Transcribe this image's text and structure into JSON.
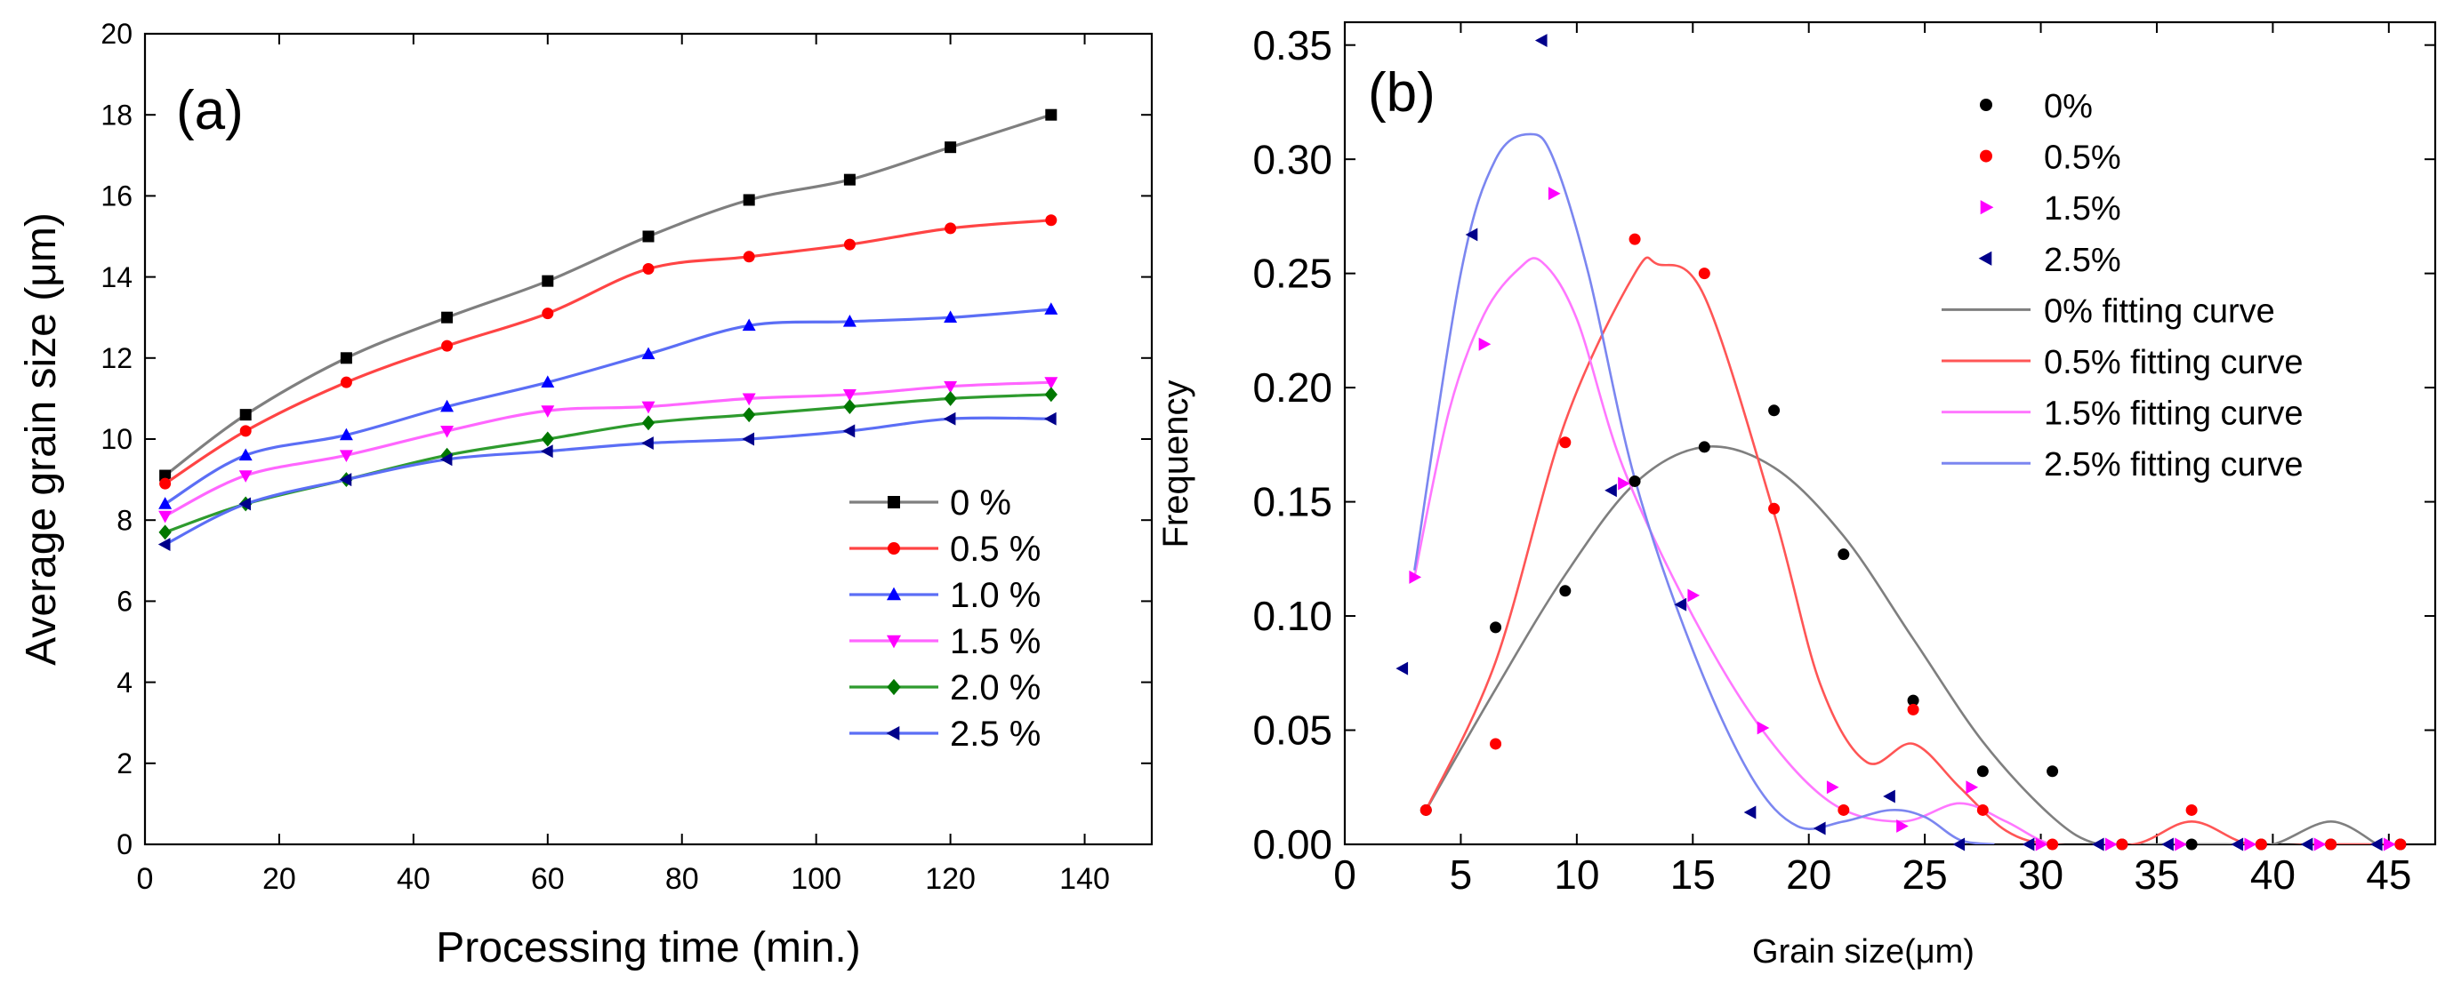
{
  "chart_data": [
    {
      "type": "line",
      "panel_label": "(a)",
      "xlabel": "Processing time (min.)",
      "ylabel": "Average grain size (μm)",
      "xlim": [
        0,
        150
      ],
      "ylim": [
        0,
        20
      ],
      "x_ticks": [
        "0",
        "20",
        "40",
        "60",
        "80",
        "100",
        "120",
        "140"
      ],
      "y_ticks": [
        "0",
        "2",
        "4",
        "6",
        "8",
        "10",
        "12",
        "14",
        "16",
        "18",
        "20"
      ],
      "legend_position": "bottom-right",
      "x": [
        3,
        15,
        30,
        45,
        60,
        75,
        90,
        105,
        120,
        135
      ],
      "series": [
        {
          "name": "0    %",
          "color": "#7f7f7f",
          "marker_color": "#000000",
          "marker": "square",
          "values": [
            9.1,
            10.6,
            12.0,
            13.0,
            13.9,
            15.0,
            15.9,
            16.4,
            17.2,
            18.0
          ]
        },
        {
          "name": "0.5 %",
          "color": "#ff4444",
          "marker_color": "#ff0000",
          "marker": "circle",
          "values": [
            8.9,
            10.2,
            11.4,
            12.3,
            13.1,
            14.2,
            14.5,
            14.8,
            15.2,
            15.4
          ]
        },
        {
          "name": "1.0 %",
          "color": "#5b6ef5",
          "marker_color": "#0000ff",
          "marker": "triangle-up",
          "values": [
            8.4,
            9.6,
            10.1,
            10.8,
            11.4,
            12.1,
            12.8,
            12.9,
            13.0,
            13.2
          ]
        },
        {
          "name": "1.5 %",
          "color": "#ff66ff",
          "marker_color": "#ff00ff",
          "marker": "triangle-down",
          "values": [
            8.1,
            9.1,
            9.6,
            10.2,
            10.7,
            10.8,
            11.0,
            11.1,
            11.3,
            11.4
          ]
        },
        {
          "name": "2.0 %",
          "color": "#2e9b2e",
          "marker_color": "#007700",
          "marker": "diamond",
          "values": [
            7.7,
            8.4,
            9.0,
            9.6,
            10.0,
            10.4,
            10.6,
            10.8,
            11.0,
            11.1
          ]
        },
        {
          "name": "2.5 %",
          "color": "#5b6ef5",
          "marker_color": "#00008b",
          "marker": "triangle-left",
          "values": [
            7.4,
            8.4,
            9.0,
            9.5,
            9.7,
            9.9,
            10.0,
            10.2,
            10.5,
            10.5
          ]
        }
      ]
    },
    {
      "type": "scatter",
      "panel_label": "(b)",
      "xlabel": "Grain size(μm)",
      "ylabel": "Frequency",
      "xlim": [
        0,
        47
      ],
      "ylim": [
        0,
        0.36
      ],
      "x_ticks": [
        "0",
        "5",
        "10",
        "15",
        "20",
        "25",
        "30",
        "35",
        "40",
        "45"
      ],
      "y_ticks": [
        "0.00",
        "0.05",
        "0.10",
        "0.15",
        "0.20",
        "0.25",
        "0.30",
        "0.35"
      ],
      "legend_position": "top-right",
      "series": [
        {
          "name": "0%",
          "color": "#000000",
          "marker": "circle",
          "x": [
            3.5,
            6.5,
            9.5,
            12.5,
            15.5,
            18.5,
            21.5,
            24.5,
            27.5,
            30.5,
            33.5,
            36.5,
            39.5,
            42.5,
            45.5
          ],
          "y": [
            0.015,
            0.095,
            0.111,
            0.159,
            0.174,
            0.19,
            0.127,
            0.063,
            0.032,
            0.032,
            0.0,
            0.0,
            0.0,
            0.0,
            0.0
          ]
        },
        {
          "name": "0.5%",
          "color": "#ff0000",
          "marker": "circle",
          "x": [
            3.5,
            6.5,
            9.5,
            12.5,
            15.5,
            18.5,
            21.5,
            24.5,
            27.5,
            30.5,
            33.5,
            36.5,
            39.5,
            42.5,
            45.5
          ],
          "y": [
            0.015,
            0.044,
            0.176,
            0.265,
            0.25,
            0.147,
            0.015,
            0.059,
            0.015,
            0.0,
            0.0,
            0.015,
            0.0,
            0.0,
            0.0
          ]
        },
        {
          "name": "1.5%",
          "color": "#ff00ff",
          "marker": "triangle-right",
          "x": [
            3.0,
            6.0,
            9.0,
            12.0,
            15.0,
            18.0,
            21.0,
            24.0,
            27.0,
            30.0,
            33.0,
            36.0,
            39.0,
            42.0,
            45.0
          ],
          "y": [
            0.117,
            0.219,
            0.285,
            0.158,
            0.109,
            0.051,
            0.025,
            0.008,
            0.025,
            0.0,
            0.0,
            0.0,
            0.0,
            0.0,
            0.0
          ]
        },
        {
          "name": "2.5%",
          "color": "#00008b",
          "marker": "triangle-left",
          "x": [
            2.5,
            5.5,
            8.5,
            11.5,
            14.5,
            17.5,
            20.5,
            23.5,
            26.5,
            29.5,
            32.5,
            35.5,
            38.5,
            41.5,
            44.5
          ],
          "y": [
            0.077,
            0.267,
            0.352,
            0.155,
            0.105,
            0.014,
            0.007,
            0.021,
            0.0,
            0.0,
            0.0,
            0.0,
            0.0,
            0.0,
            0.0
          ]
        },
        {
          "name": "0%    fitting curve",
          "color": "#7f7f7f",
          "line": true,
          "x": [
            3.5,
            6.5,
            9.5,
            12.5,
            15.5,
            18.5,
            21.5,
            24.5,
            27.5,
            30.5,
            32.5,
            35,
            38,
            40,
            42.5,
            44.5
          ],
          "y": [
            0.015,
            0.068,
            0.118,
            0.158,
            0.174,
            0.165,
            0.135,
            0.09,
            0.045,
            0.012,
            0.0,
            0.0,
            0.0,
            0.0,
            0.01,
            0.0
          ]
        },
        {
          "name": "0.5% fitting curve",
          "color": "#ff5555",
          "line": true,
          "x": [
            3.5,
            6.5,
            9.5,
            12.5,
            13.5,
            15.5,
            18.5,
            20.5,
            22.5,
            24.5,
            26.5,
            28.5,
            30.5,
            34,
            36.5,
            39,
            42,
            45.5
          ],
          "y": [
            0.015,
            0.08,
            0.185,
            0.25,
            0.254,
            0.24,
            0.145,
            0.07,
            0.036,
            0.044,
            0.025,
            0.006,
            0.0,
            0.0,
            0.01,
            0.0,
            0.0,
            0.0
          ]
        },
        {
          "name": "1.5% fitting curve",
          "color": "#ff77ff",
          "line": true,
          "x": [
            3.0,
            4.5,
            6.0,
            7.5,
            8.5,
            10.0,
            12.0,
            15.0,
            18.0,
            21.0,
            24.0,
            26.5,
            28.5,
            30.5,
            33.0
          ],
          "y": [
            0.117,
            0.19,
            0.232,
            0.252,
            0.255,
            0.23,
            0.165,
            0.1,
            0.05,
            0.018,
            0.01,
            0.018,
            0.01,
            0.0,
            0.0
          ]
        },
        {
          "name": "2.5% fitting curve",
          "color": "#7b86f0",
          "line": true,
          "x": [
            3.0,
            5.0,
            6.5,
            8.0,
            9.0,
            10.5,
            12.5,
            15.0,
            17.5,
            19.5,
            21.5,
            23.5,
            25.0,
            26.5,
            28.0
          ],
          "y": [
            0.12,
            0.25,
            0.3,
            0.311,
            0.3,
            0.25,
            0.16,
            0.085,
            0.03,
            0.008,
            0.01,
            0.015,
            0.012,
            0.002,
            0.0
          ]
        }
      ]
    }
  ]
}
